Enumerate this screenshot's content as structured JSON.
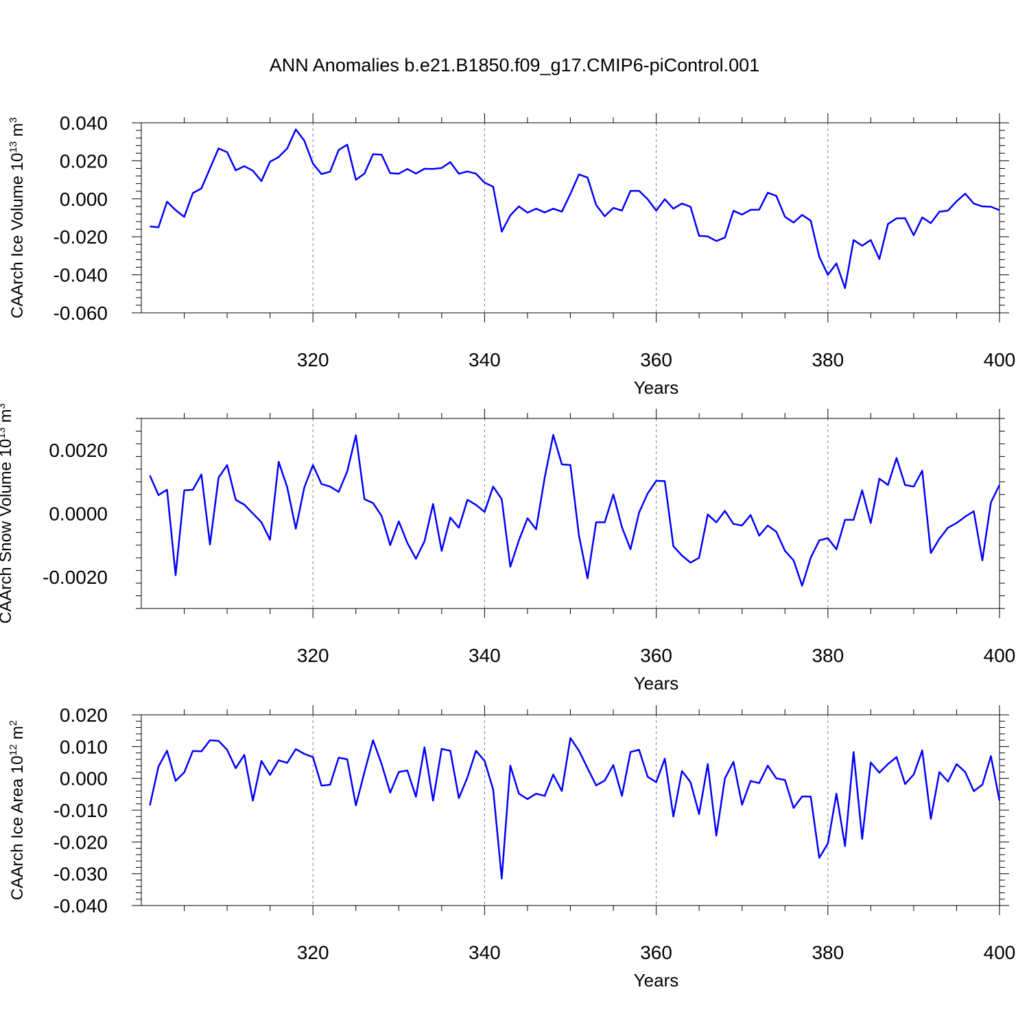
{
  "title": "ANN Anomalies b.e21.B1850.f09_g17.CMIP6-piControl.001",
  "colors": {
    "series": "#0000ff",
    "axis": "#000000",
    "grid": "#808080"
  },
  "chart_data": [
    {
      "type": "line",
      "ylabel_main": "CAArch Ice Volume 10",
      "ylabel_sup": "13",
      "ylabel_unit_base": "m",
      "ylabel_unit_sup": "3",
      "xlabel": "Years",
      "xlim": [
        300,
        400
      ],
      "ylim": [
        -0.06,
        0.04
      ],
      "yticks": [
        -0.06,
        -0.04,
        -0.02,
        0.0,
        0.02,
        0.04
      ],
      "ytick_labels": [
        "-0.060",
        "-0.040",
        "-0.020",
        "0.000",
        "0.020",
        "0.040"
      ],
      "xticks": [
        320,
        340,
        360,
        380,
        400
      ],
      "xtick_labels": [
        "320",
        "340",
        "360",
        "380",
        "400"
      ],
      "grid": "vertical dashed at major x ticks",
      "series": [
        {
          "x": [
            301,
            302,
            303,
            304,
            305,
            306,
            307,
            308,
            309,
            310,
            311,
            312,
            313,
            314,
            315,
            316,
            317,
            318,
            319,
            320,
            321,
            322,
            323,
            324,
            325,
            326,
            327,
            328,
            329,
            330,
            331,
            332,
            333,
            334,
            335,
            336,
            337,
            338,
            339,
            340,
            341,
            342,
            343,
            344,
            345,
            346,
            347,
            348,
            349,
            350,
            351,
            352,
            353,
            354,
            355,
            356,
            357,
            358,
            359,
            360,
            361,
            362,
            363,
            364,
            365,
            366,
            367,
            368,
            369,
            370,
            371,
            372,
            373,
            374,
            375,
            376,
            377,
            378,
            379,
            380,
            381,
            382,
            383,
            384,
            385,
            386,
            387,
            388,
            389,
            390,
            391,
            392,
            393,
            394,
            395,
            396,
            397,
            398,
            399,
            400
          ],
          "values": [
            -0.0145,
            -0.015,
            -0.0015,
            -0.006,
            -0.0095,
            0.003,
            0.0055,
            0.016,
            0.0265,
            0.0245,
            0.015,
            0.0172,
            0.0148,
            0.0093,
            0.0195,
            0.022,
            0.0265,
            0.0365,
            0.0305,
            0.0185,
            0.013,
            0.0143,
            0.0257,
            0.0285,
            0.01,
            0.0133,
            0.0235,
            0.0232,
            0.0135,
            0.0132,
            0.0157,
            0.0133,
            0.0158,
            0.0157,
            0.0162,
            0.0193,
            0.0132,
            0.0144,
            0.0132,
            0.0085,
            0.0063,
            -0.0173,
            -0.0087,
            -0.004,
            -0.0073,
            -0.0052,
            -0.0072,
            -0.0052,
            -0.0068,
            0.0026,
            0.0128,
            0.0112,
            -0.0032,
            -0.0092,
            -0.0048,
            -0.0062,
            0.0042,
            0.0042,
            -0.0002,
            -0.0062,
            -0.0002,
            -0.0052,
            -0.0025,
            -0.0042,
            -0.0195,
            -0.0198,
            -0.0222,
            -0.0204,
            -0.0063,
            -0.0083,
            -0.0058,
            -0.0057,
            0.0032,
            0.0015,
            -0.0095,
            -0.0125,
            -0.0085,
            -0.0115,
            -0.0305,
            -0.04,
            -0.034,
            -0.047,
            -0.0217,
            -0.0247,
            -0.0217,
            -0.0317,
            -0.0133,
            -0.0103,
            -0.0102,
            -0.0192,
            -0.0098,
            -0.0128,
            -0.0068,
            -0.0062,
            -0.0013,
            0.0027,
            -0.0025,
            -0.004,
            -0.0042,
            -0.006
          ]
        }
      ]
    },
    {
      "type": "line",
      "ylabel_main": "CAArch Snow Volume 10",
      "ylabel_sup": "13",
      "ylabel_unit_base": "m",
      "ylabel_unit_sup": "3",
      "xlabel": "Years",
      "xlim": [
        300,
        400
      ],
      "ylim": [
        -0.003,
        0.003
      ],
      "yticks": [
        -0.002,
        0.0,
        0.002
      ],
      "ytick_labels": [
        "-0.0020",
        "0.0000",
        "0.0020"
      ],
      "xticks": [
        320,
        340,
        360,
        380,
        400
      ],
      "xtick_labels": [
        "320",
        "340",
        "360",
        "380",
        "400"
      ],
      "grid": "vertical dashed at major x ticks",
      "series": [
        {
          "x": [
            301,
            302,
            303,
            304,
            305,
            306,
            307,
            308,
            309,
            310,
            311,
            312,
            313,
            314,
            315,
            316,
            317,
            318,
            319,
            320,
            321,
            322,
            323,
            324,
            325,
            326,
            327,
            328,
            329,
            330,
            331,
            332,
            333,
            334,
            335,
            336,
            337,
            338,
            339,
            340,
            341,
            342,
            343,
            344,
            345,
            346,
            347,
            348,
            349,
            350,
            351,
            352,
            353,
            354,
            355,
            356,
            357,
            358,
            359,
            360,
            361,
            362,
            363,
            364,
            365,
            366,
            367,
            368,
            369,
            370,
            371,
            372,
            373,
            374,
            375,
            376,
            377,
            378,
            379,
            380,
            381,
            382,
            383,
            384,
            385,
            386,
            387,
            388,
            389,
            390,
            391,
            392,
            393,
            394,
            395,
            396,
            397,
            398,
            399,
            400
          ],
          "values": [
            0.0012,
            0.00058,
            0.00075,
            -0.00195,
            0.00073,
            0.00075,
            0.00123,
            -0.00098,
            0.00113,
            0.00153,
            0.00043,
            0.00028,
            0.0,
            -0.00028,
            -0.00083,
            0.00163,
            0.00083,
            -0.00048,
            0.00083,
            0.00153,
            0.00093,
            0.00085,
            0.00068,
            0.00133,
            0.00247,
            0.00045,
            0.00033,
            -8e-05,
            -0.001,
            -0.00025,
            -0.00093,
            -0.00143,
            -0.00088,
            0.0003,
            -0.00118,
            -0.00013,
            -0.00045,
            0.00043,
            0.00027,
            5e-05,
            0.00085,
            0.00045,
            -0.00168,
            -0.00085,
            -0.00015,
            -0.0005,
            0.00113,
            0.00248,
            0.00155,
            0.00153,
            -0.0007,
            -0.00205,
            -0.00028,
            -0.00028,
            0.0006,
            -0.00043,
            -0.00113,
            3e-05,
            0.00063,
            0.00103,
            0.00102,
            -0.00103,
            -0.00133,
            -0.00155,
            -0.0014,
            -3e-05,
            -0.00028,
            8e-05,
            -0.00033,
            -0.00038,
            -5e-05,
            -0.0007,
            -0.00038,
            -0.00058,
            -0.00118,
            -0.00148,
            -0.00228,
            -0.0014,
            -0.00085,
            -0.00078,
            -0.00113,
            -0.0002,
            -0.0002,
            0.00073,
            -0.0003,
            0.0011,
            0.0009,
            0.00175,
            0.0009,
            0.00085,
            0.00135,
            -0.00125,
            -0.0008,
            -0.00045,
            -0.0003,
            -0.0001,
            7e-05,
            -0.00148,
            0.00035,
            0.0009
          ]
        }
      ]
    },
    {
      "type": "line",
      "ylabel_main": "CAArch Ice Area 10",
      "ylabel_sup": "12",
      "ylabel_unit_base": "m",
      "ylabel_unit_sup": "2",
      "xlabel": "Years",
      "xlim": [
        300,
        400
      ],
      "ylim": [
        -0.04,
        0.02
      ],
      "yticks": [
        -0.04,
        -0.03,
        -0.02,
        -0.01,
        0.0,
        0.01,
        0.02
      ],
      "ytick_labels": [
        "-0.040",
        "-0.030",
        "-0.020",
        "-0.010",
        "0.000",
        "0.010",
        "0.020"
      ],
      "xticks": [
        320,
        340,
        360,
        380,
        400
      ],
      "xtick_labels": [
        "320",
        "340",
        "360",
        "380",
        "400"
      ],
      "grid": "vertical dashed at major x ticks",
      "series": [
        {
          "x": [
            301,
            302,
            303,
            304,
            305,
            306,
            307,
            308,
            309,
            310,
            311,
            312,
            313,
            314,
            315,
            316,
            317,
            318,
            319,
            320,
            321,
            322,
            323,
            324,
            325,
            326,
            327,
            328,
            329,
            330,
            331,
            332,
            333,
            334,
            335,
            336,
            337,
            338,
            339,
            340,
            341,
            342,
            343,
            344,
            345,
            346,
            347,
            348,
            349,
            350,
            351,
            352,
            353,
            354,
            355,
            356,
            357,
            358,
            359,
            360,
            361,
            362,
            363,
            364,
            365,
            366,
            367,
            368,
            369,
            370,
            371,
            372,
            373,
            374,
            375,
            376,
            377,
            378,
            379,
            380,
            381,
            382,
            383,
            384,
            385,
            386,
            387,
            388,
            389,
            390,
            391,
            392,
            393,
            394,
            395,
            396,
            397,
            398,
            399,
            400
          ],
          "values": [
            -0.0085,
            0.0037,
            0.0087,
            -0.0008,
            0.0019,
            0.0086,
            0.0085,
            0.012,
            0.0118,
            0.009,
            0.0032,
            0.0074,
            -0.007,
            0.0055,
            0.0011,
            0.0057,
            0.0049,
            0.0092,
            0.0077,
            0.0067,
            -0.0023,
            -0.002,
            0.0065,
            0.006,
            -0.0085,
            0.002,
            0.012,
            0.0045,
            -0.0045,
            0.002,
            0.0025,
            -0.0058,
            0.0098,
            -0.007,
            0.0093,
            0.0087,
            -0.0062,
            0.0003,
            0.0087,
            0.0055,
            -0.0035,
            -0.0315,
            0.004,
            -0.0048,
            -0.0065,
            -0.0048,
            -0.0055,
            0.0012,
            -0.004,
            0.0127,
            0.0087,
            0.0032,
            -0.0022,
            -0.0007,
            0.0042,
            -0.0055,
            0.0083,
            0.009,
            0.0005,
            -0.0012,
            0.0062,
            -0.012,
            0.0023,
            -0.0012,
            -0.0112,
            0.0045,
            -0.018,
            0.0,
            0.0052,
            -0.0083,
            -0.0008,
            -0.0015,
            0.004,
            0.0,
            -0.0005,
            -0.0093,
            -0.0057,
            -0.0057,
            -0.025,
            -0.0205,
            -0.0048,
            -0.0213,
            0.0083,
            -0.019,
            0.005,
            0.0018,
            0.0045,
            0.0067,
            -0.0018,
            0.0012,
            0.0088,
            -0.0127,
            0.002,
            -0.001,
            0.0045,
            0.002,
            -0.004,
            -0.002,
            0.007,
            -0.007
          ]
        }
      ]
    }
  ]
}
